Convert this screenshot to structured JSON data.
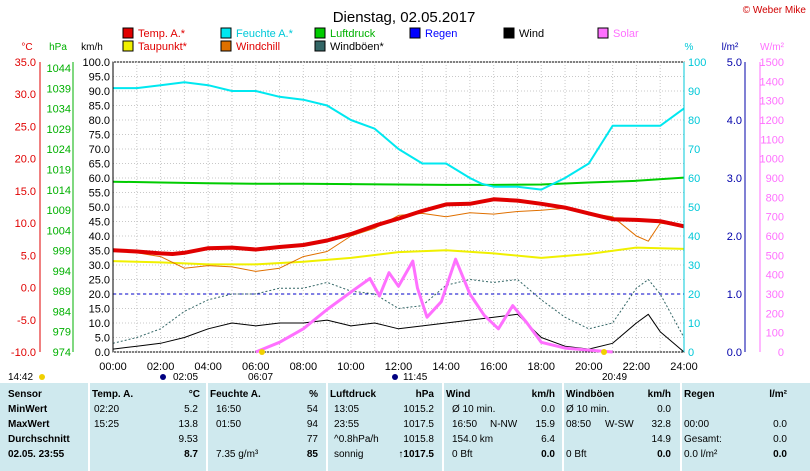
{
  "title": "Dienstag, 02.05.2017",
  "credit": "© Weber Mike",
  "legend": [
    {
      "label": "Temp. A.*",
      "color": "#e00000"
    },
    {
      "label": "Feuchte A.*",
      "color": "#00e8f0"
    },
    {
      "label": "Luftdruck",
      "color": "#00cc00"
    },
    {
      "label": "Regen",
      "color": "#0000ff"
    },
    {
      "label": "Wind",
      "color": "#000000"
    },
    {
      "label": "Solar",
      "color": "#ff70ff"
    },
    {
      "label": "Taupunkt*",
      "color": "#f0f000"
    },
    {
      "label": "Windchill",
      "color": "#e07000"
    },
    {
      "label": "Windböen*",
      "color": "#336666"
    }
  ],
  "axes": {
    "temp": {
      "unit": "°C",
      "ticks": [
        "35.0",
        "30.0",
        "25.0",
        "20.0",
        "15.0",
        "10.0",
        "5.0",
        "0.0",
        "-5.0",
        "-10.0"
      ]
    },
    "pressure": {
      "unit": "hPa",
      "ticks": [
        "1044",
        "1039",
        "1034",
        "1029",
        "1024",
        "1019",
        "1014",
        "1009",
        "1004",
        "999",
        "994",
        "989",
        "984",
        "979",
        "974"
      ]
    },
    "wind": {
      "unit": "km/h",
      "ticks": [
        "100.0",
        "95.0",
        "90.0",
        "85.0",
        "80.0",
        "75.0",
        "70.0",
        "65.0",
        "60.0",
        "55.0",
        "50.0",
        "45.0",
        "40.0",
        "35.0",
        "30.0",
        "25.0",
        "20.0",
        "15.0",
        "10.0",
        "5.0",
        "0.0"
      ]
    },
    "humidity": {
      "unit": "%",
      "ticks": [
        "100",
        "90",
        "80",
        "70",
        "60",
        "50",
        "40",
        "30",
        "20",
        "10",
        "0"
      ]
    },
    "rain": {
      "unit": "l/m²",
      "ticks": [
        "5.0",
        "4.0",
        "3.0",
        "2.0",
        "1.0",
        "0.0"
      ]
    },
    "solar": {
      "unit": "W/m²",
      "ticks": [
        "1500",
        "1400",
        "1300",
        "1200",
        "1100",
        "1000",
        "900",
        "800",
        "700",
        "600",
        "500",
        "400",
        "300",
        "200",
        "100",
        "0"
      ]
    },
    "x_ticks": [
      "00:00",
      "02:00",
      "04:00",
      "06:00",
      "08:00",
      "10:00",
      "12:00",
      "14:00",
      "16:00",
      "18:00",
      "20:00",
      "22:00",
      "24:00"
    ]
  },
  "events": {
    "moonrise": "14:42",
    "sunrise": "02:05",
    "sunrise2": "06:07",
    "noon": "11:45",
    "sunset": "20:49"
  },
  "chart_data": {
    "type": "line",
    "x_unit": "hours",
    "series": [
      {
        "name": "Temp. A.*",
        "axis": "temp",
        "x": [
          0,
          1,
          2,
          2.5,
          3,
          4,
          5,
          6,
          7,
          8,
          9,
          10,
          11,
          12,
          13,
          14,
          15,
          16,
          17,
          18,
          19,
          20,
          21,
          22,
          23,
          24
        ],
        "values": [
          5.8,
          5.6,
          5.3,
          5.2,
          5.4,
          6.1,
          6.2,
          5.9,
          6.3,
          6.6,
          7.3,
          8.3,
          9.6,
          10.7,
          11.9,
          12.9,
          13.0,
          13.7,
          13.5,
          13.0,
          12.4,
          11.5,
          10.6,
          10.5,
          10.3,
          9.5
        ]
      },
      {
        "name": "Feuchte A.*",
        "axis": "humidity",
        "x": [
          0,
          1,
          2,
          3,
          4,
          5,
          6,
          7,
          8,
          9,
          10,
          11,
          12,
          13,
          14,
          15,
          15.5,
          16,
          17,
          18,
          19,
          20,
          21,
          22,
          23,
          24
        ],
        "values": [
          91,
          91,
          92,
          93,
          92,
          90,
          90,
          88,
          87,
          85,
          80,
          77,
          70,
          65,
          65,
          60,
          58,
          57,
          57,
          56,
          60,
          65,
          78,
          78,
          78,
          84
        ]
      },
      {
        "name": "Luftdruck",
        "axis": "pressure",
        "x": [
          0,
          2,
          4,
          6,
          8,
          10,
          12,
          14,
          16,
          18,
          20,
          22,
          24
        ],
        "values": [
          1016.0,
          1015.8,
          1015.6,
          1015.5,
          1015.5,
          1015.4,
          1015.3,
          1015.2,
          1015.2,
          1015.3,
          1015.8,
          1016.2,
          1017.0
        ]
      },
      {
        "name": "Taupunkt*",
        "axis": "temp",
        "x": [
          0,
          2,
          4,
          6,
          8,
          10,
          12,
          14,
          16,
          18,
          20,
          22,
          24
        ],
        "values": [
          4.1,
          3.9,
          3.6,
          3.6,
          4.0,
          4.6,
          5.5,
          5.8,
          5.3,
          4.6,
          5.2,
          6.2,
          6.0
        ]
      },
      {
        "name": "Windchill",
        "axis": "temp",
        "x": [
          0,
          1,
          2,
          3,
          4,
          5,
          6,
          7,
          8,
          9,
          10,
          11,
          12,
          13,
          14,
          15,
          16,
          17,
          18,
          19,
          20,
          21,
          22,
          22.5,
          23,
          24
        ],
        "values": [
          5.8,
          5.4,
          4.8,
          3.0,
          3.4,
          3.2,
          2.5,
          3.0,
          4.8,
          5.6,
          8.0,
          9.2,
          11.2,
          11.5,
          11.0,
          11.6,
          11.4,
          11.8,
          12.0,
          12.3,
          11.5,
          11.0,
          8.0,
          7.2,
          10.0,
          9.5
        ]
      },
      {
        "name": "Windböen*",
        "axis": "wind",
        "x": [
          0,
          1,
          2,
          3,
          4,
          5,
          6,
          7,
          8,
          9,
          10,
          11,
          12,
          13,
          14,
          15,
          16,
          17,
          18,
          19,
          20,
          21,
          22,
          22.5,
          23,
          24
        ],
        "values": [
          3,
          5,
          8,
          14,
          18,
          20,
          20,
          22,
          22,
          24,
          21,
          20,
          15,
          16,
          23,
          25,
          24,
          25,
          18,
          12,
          8,
          10,
          22,
          25,
          20,
          5
        ]
      },
      {
        "name": "Wind",
        "axis": "wind",
        "x": [
          0,
          1,
          2,
          3,
          4,
          5,
          6,
          7,
          8,
          9,
          10,
          11,
          12,
          13,
          14,
          15,
          16,
          17,
          18,
          19,
          20,
          21,
          22,
          22.5,
          23,
          24
        ],
        "values": [
          1,
          2,
          3,
          5,
          8,
          10,
          9,
          10,
          10,
          11,
          9,
          10,
          8,
          9,
          10,
          11,
          12,
          13,
          5,
          2,
          1,
          3,
          10,
          13,
          7,
          0
        ]
      },
      {
        "name": "Solar",
        "axis": "solar",
        "x": [
          6,
          7,
          8,
          9,
          10,
          10.8,
          11.2,
          11.6,
          12,
          12.6,
          12.8,
          13.2,
          13.8,
          14.4,
          15,
          15.6,
          16.2,
          16.8,
          17.4,
          18,
          19,
          20,
          21
        ],
        "values": [
          0,
          50,
          120,
          220,
          310,
          380,
          290,
          410,
          340,
          470,
          330,
          180,
          260,
          480,
          300,
          190,
          120,
          240,
          150,
          50,
          20,
          10,
          0
        ]
      },
      {
        "name": "Regen",
        "axis": "rain",
        "x": [
          0,
          24
        ],
        "values": [
          0,
          0
        ]
      }
    ],
    "hline_rain_dashed": 1.0
  },
  "table": {
    "headers": [
      {
        "label": "Sensor"
      },
      {
        "label": "Temp. A.",
        "unit": "°C"
      },
      {
        "label": "Feuchte A.",
        "unit": "%"
      },
      {
        "label": "Luftdruck",
        "unit": "hPa"
      },
      {
        "label": "Wind",
        "unit": "km/h"
      },
      {
        "label": "Windböen",
        "unit": "km/h"
      },
      {
        "label": "Regen",
        "unit": "l/m²"
      }
    ],
    "rows": [
      {
        "label": "MinWert",
        "cells": [
          "02:20",
          "5.2",
          "16:50",
          "54",
          "13:05",
          "1015.2",
          "Ø 10 min.",
          "",
          "0.0",
          "Ø 10 min.",
          "0.0",
          "",
          ""
        ]
      },
      {
        "label": "MaxWert",
        "cells": [
          "15:25",
          "13.8",
          "01:50",
          "94",
          "23:55",
          "1017.5",
          "16:50",
          "N-NW",
          "15.9",
          "08:50",
          "W-SW",
          "32.8",
          "00:00",
          "0.0"
        ]
      },
      {
        "label": "Durchschnitt",
        "cells": [
          "",
          "9.53",
          "",
          "77",
          "^0.8hPa/h",
          "1015.8",
          "154.0 km",
          "",
          "6.4",
          "",
          "14.9",
          "Gesamt:",
          "0.0"
        ]
      },
      {
        "label": "02.05. 23:55",
        "cells": [
          "",
          "8.7",
          "7.35 g/m³",
          "85",
          "sonnig",
          "↑1017.5",
          "0 Bft",
          "",
          "0.0",
          "0 Bft",
          "0.0",
          "0.0 l/m²",
          "0.0"
        ]
      }
    ]
  }
}
